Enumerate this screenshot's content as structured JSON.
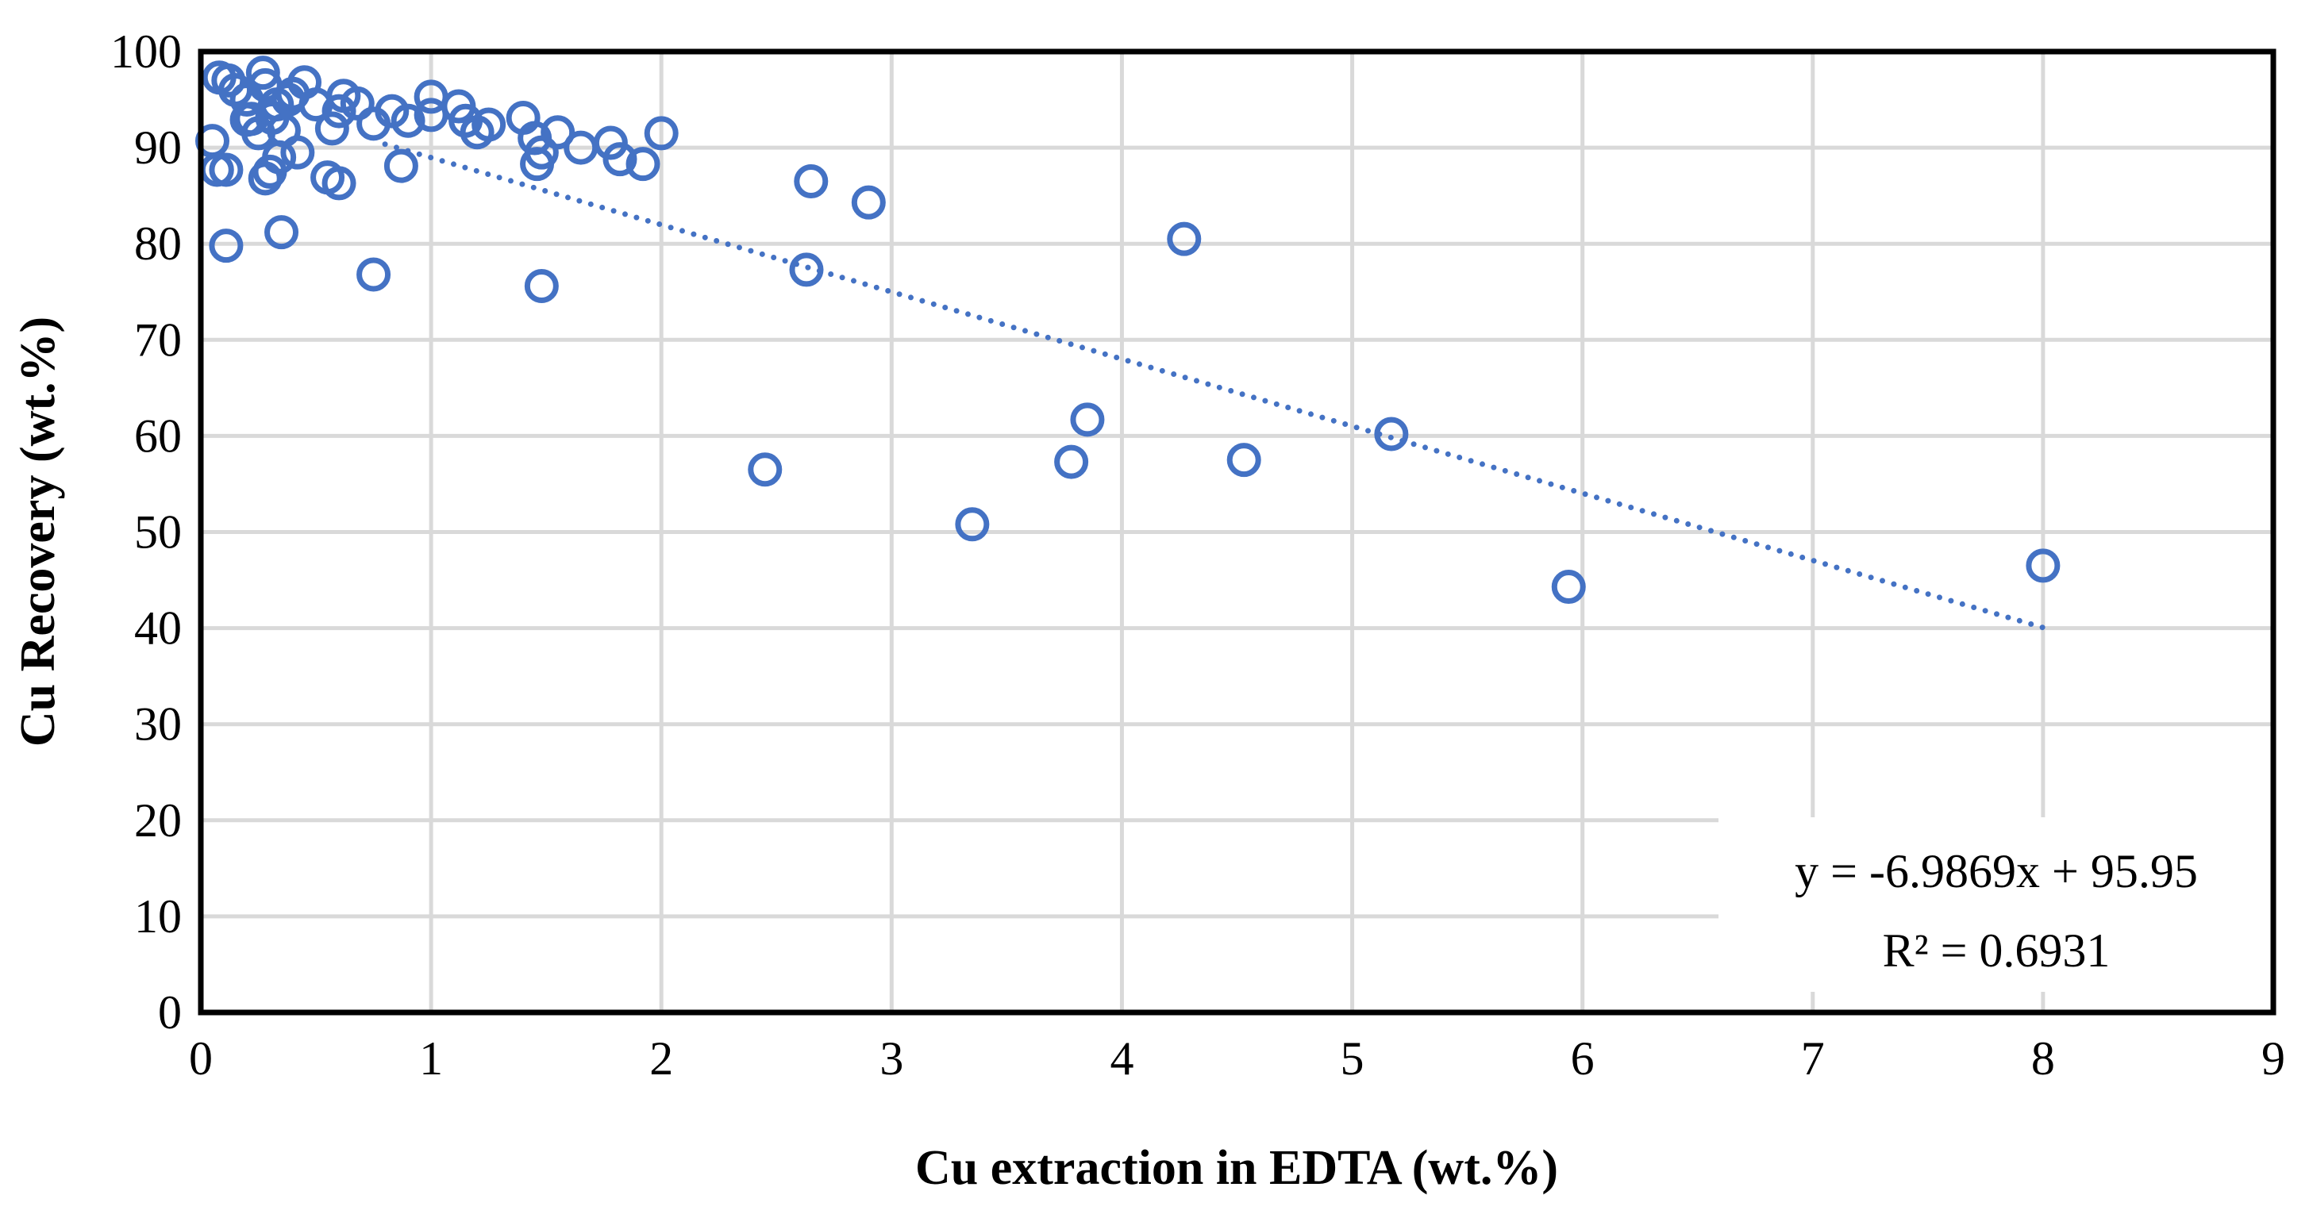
{
  "chart_data": {
    "type": "scatter",
    "title": "",
    "xlabel": "Cu extraction in EDTA (wt.%)",
    "ylabel": "Cu Recovery (wt.%)",
    "xlim": [
      0,
      9
    ],
    "ylim": [
      0,
      100
    ],
    "xticks": [
      "0",
      "1",
      "2",
      "3",
      "4",
      "5",
      "6",
      "7",
      "8",
      "9"
    ],
    "yticks": [
      "0",
      "10",
      "20",
      "30",
      "40",
      "50",
      "60",
      "70",
      "80",
      "90",
      "100"
    ],
    "grid": true,
    "marker_color": "#4472C4",
    "series": [
      {
        "name": "Cu Recovery",
        "points": [
          [
            0.05,
            90.7
          ],
          [
            0.07,
            87.7
          ],
          [
            0.08,
            97.3
          ],
          [
            0.11,
            87.7
          ],
          [
            0.12,
            97.0
          ],
          [
            0.11,
            79.8
          ],
          [
            0.15,
            96.0
          ],
          [
            0.2,
            95.0
          ],
          [
            0.2,
            92.9
          ],
          [
            0.22,
            93.0
          ],
          [
            0.25,
            91.5
          ],
          [
            0.27,
            97.8
          ],
          [
            0.28,
            96.5
          ],
          [
            0.28,
            86.8
          ],
          [
            0.3,
            87.5
          ],
          [
            0.31,
            93.1
          ],
          [
            0.33,
            94.5
          ],
          [
            0.34,
            89.0
          ],
          [
            0.35,
            81.2
          ],
          [
            0.36,
            91.8
          ],
          [
            0.38,
            95.0
          ],
          [
            0.4,
            95.6
          ],
          [
            0.42,
            89.5
          ],
          [
            0.45,
            96.8
          ],
          [
            0.5,
            94.5
          ],
          [
            0.55,
            86.9
          ],
          [
            0.57,
            92.0
          ],
          [
            0.6,
            93.8
          ],
          [
            0.6,
            86.3
          ],
          [
            0.62,
            95.4
          ],
          [
            0.68,
            94.6
          ],
          [
            0.75,
            76.8
          ],
          [
            0.75,
            92.5
          ],
          [
            0.83,
            93.8
          ],
          [
            0.87,
            88.1
          ],
          [
            0.9,
            92.8
          ],
          [
            1.0,
            95.3
          ],
          [
            1.0,
            93.4
          ],
          [
            1.12,
            94.3
          ],
          [
            1.15,
            92.8
          ],
          [
            1.2,
            91.6
          ],
          [
            1.25,
            92.4
          ],
          [
            1.4,
            93.1
          ],
          [
            1.45,
            91.0
          ],
          [
            1.46,
            88.3
          ],
          [
            1.48,
            89.5
          ],
          [
            1.48,
            75.6
          ],
          [
            1.55,
            91.6
          ],
          [
            1.65,
            90.0
          ],
          [
            1.78,
            90.5
          ],
          [
            1.82,
            88.8
          ],
          [
            1.92,
            88.3
          ],
          [
            2.0,
            91.5
          ],
          [
            2.45,
            56.5
          ],
          [
            2.63,
            77.3
          ],
          [
            2.65,
            86.5
          ],
          [
            2.9,
            84.3
          ],
          [
            3.35,
            50.8
          ],
          [
            3.78,
            57.3
          ],
          [
            3.85,
            61.7
          ],
          [
            4.27,
            80.5
          ],
          [
            4.53,
            57.5
          ],
          [
            5.17,
            60.2
          ],
          [
            5.94,
            44.3
          ],
          [
            8.0,
            46.5
          ]
        ]
      }
    ],
    "trendline": {
      "type": "linear",
      "slope": -6.9869,
      "intercept": 95.95,
      "x_range": [
        0.8,
        8.0
      ],
      "style": "dotted",
      "equation_label": "y = -6.9869x + 95.95",
      "r2_label": "R² = 0.6931",
      "label_position": "bottom-right"
    }
  }
}
